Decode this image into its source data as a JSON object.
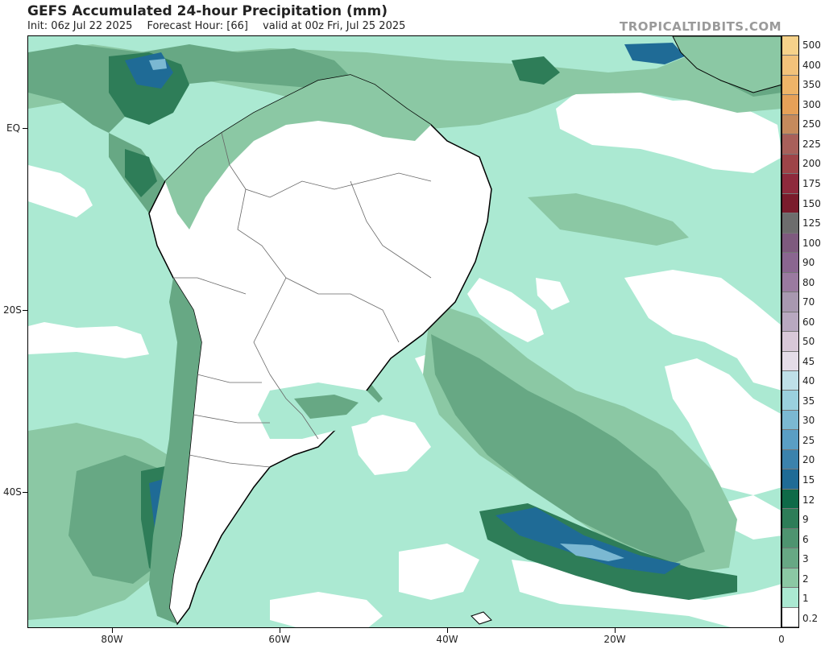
{
  "header": {
    "title": "GEFS Accumulated 24-hour Precipitation (mm)",
    "init": "Init: 06z Jul 22 2025",
    "forecast_hour": "Forecast Hour: [66]",
    "valid": "valid at 00z Fri, Jul 25 2025",
    "credit": "TROPICALTIDBITS.COM"
  },
  "axes": {
    "latitude_labels": [
      "EQ",
      "20S",
      "40S"
    ],
    "longitude_labels": [
      "80W",
      "60W",
      "40W",
      "20W",
      "0"
    ]
  },
  "legend": {
    "unit": "mm",
    "levels": [
      "500",
      "400",
      "350",
      "300",
      "250",
      "225",
      "200",
      "175",
      "150",
      "125",
      "100",
      "90",
      "80",
      "70",
      "60",
      "50",
      "45",
      "40",
      "35",
      "30",
      "25",
      "20",
      "15",
      "12",
      "9",
      "6",
      "3",
      "2",
      "1",
      "0.2"
    ],
    "colors": [
      "#f6d28a",
      "#f2c27a",
      "#eeb468",
      "#e6a158",
      "#c58a5c",
      "#a8605a",
      "#9e4448",
      "#8e2a3c",
      "#7a1c2c",
      "#6d6d6d",
      "#7e5a7e",
      "#8a6690",
      "#9a7aa0",
      "#a898b0",
      "#b8a8c0",
      "#d8c8d8",
      "#e4dce8",
      "#bfe0e8",
      "#9ad0de",
      "#7bb8d2",
      "#5a9ec4",
      "#3b82ac",
      "#1f6b96",
      "#0f6a48",
      "#2e7d58",
      "#4e9470",
      "#67a884",
      "#8bc8a4",
      "#abe9d2",
      "#ffffff"
    ]
  },
  "map": {
    "region": "South America and South Atlantic",
    "colors": {
      "ocean_base": "#abe9d2",
      "light_green": "#8bc8a4",
      "mid_green": "#67a884",
      "dark_green": "#2e7d58",
      "blue": "#1f6b96",
      "light_blue": "#7bb8d2",
      "dry": "#ffffff",
      "border": "#000000"
    }
  }
}
